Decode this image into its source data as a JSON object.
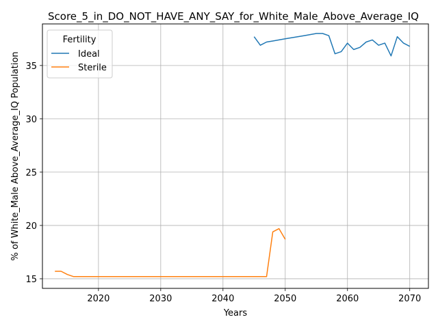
{
  "chart_data": {
    "type": "line",
    "title": "Score_5_in_DO_NOT_HAVE_ANY_SAY_for_White_Male_Above_Average_IQ",
    "xlabel": "Years",
    "ylabel": "% of White_Male Above_Average_IQ Population",
    "xlim": [
      2011,
      2073
    ],
    "ylim": [
      14.1,
      38.9
    ],
    "xticks": [
      2020,
      2030,
      2040,
      2050,
      2060,
      2070
    ],
    "yticks": [
      15,
      20,
      25,
      30,
      35
    ],
    "grid": true,
    "legend": {
      "title": "Fertility",
      "placement": "top-left"
    },
    "series": [
      {
        "name": "Ideal",
        "color": "#1f77b4",
        "x": [
          2045,
          2046,
          2047,
          2048,
          2049,
          2050,
          2051,
          2052,
          2053,
          2054,
          2055,
          2056,
          2057,
          2058,
          2059,
          2060,
          2061,
          2062,
          2063,
          2064,
          2065,
          2066,
          2067,
          2068,
          2069,
          2070
        ],
        "y": [
          37.7,
          36.9,
          37.2,
          37.3,
          37.4,
          37.5,
          37.6,
          37.7,
          37.8,
          37.9,
          38.0,
          38.0,
          37.8,
          36.1,
          36.3,
          37.1,
          36.5,
          36.7,
          37.2,
          37.4,
          36.9,
          37.1,
          35.9,
          37.7,
          37.1,
          36.8
        ]
      },
      {
        "name": "Sterile",
        "color": "#ff7f0e",
        "x": [
          2013,
          2014,
          2015,
          2016,
          2017,
          2018,
          2019,
          2020,
          2025,
          2030,
          2035,
          2040,
          2045,
          2046,
          2047,
          2048,
          2049,
          2050
        ],
        "y": [
          15.7,
          15.7,
          15.4,
          15.2,
          15.2,
          15.2,
          15.2,
          15.2,
          15.2,
          15.2,
          15.2,
          15.2,
          15.2,
          15.2,
          15.2,
          19.4,
          19.7,
          18.7
        ]
      }
    ]
  }
}
